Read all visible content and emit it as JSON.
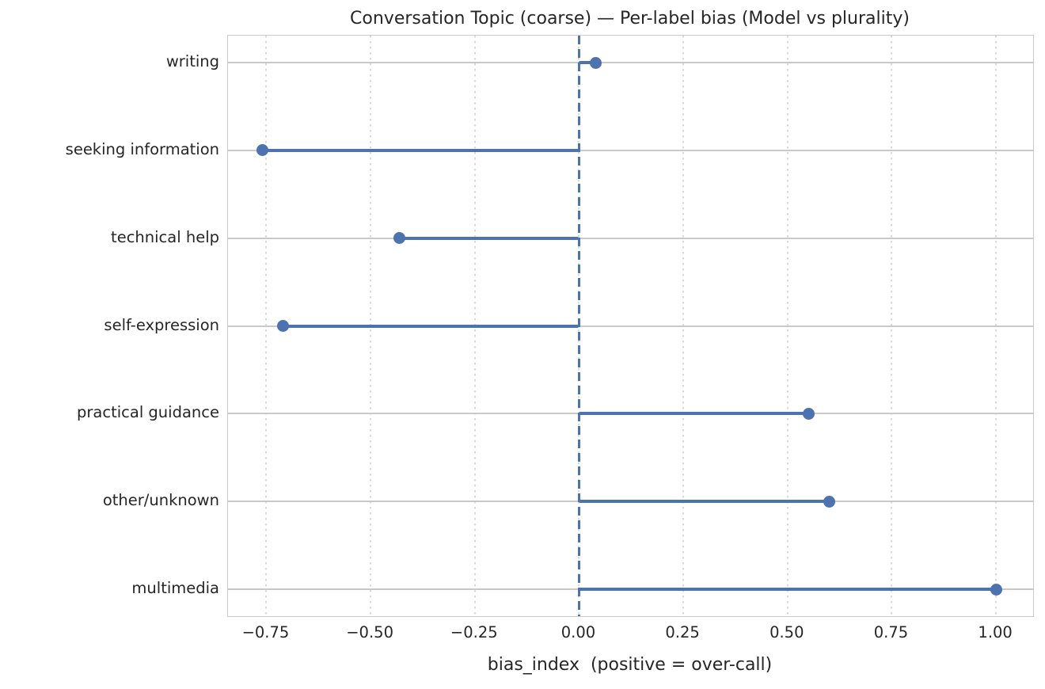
{
  "chart_data": {
    "type": "scatter",
    "subtype": "horizontal-lollipop",
    "title": "Conversation Topic (coarse) — Per-label bias (Model vs plurality)",
    "xlabel": "bias_index  (positive = over-call)",
    "categories": [
      "writing",
      "seeking information",
      "technical help",
      "self-expression",
      "practical guidance",
      "other/unknown",
      "multimedia"
    ],
    "values": [
      0.04,
      -0.76,
      -0.43,
      -0.71,
      0.55,
      0.6,
      1.0
    ],
    "xticks": [
      -0.75,
      -0.5,
      -0.25,
      0,
      0.25,
      0.5,
      0.75,
      1
    ],
    "xtick_labels": [
      "−0.75",
      "−0.50",
      "−0.25",
      "0.00",
      "0.25",
      "0.50",
      "0.75",
      "1.00"
    ],
    "xlim": [
      -0.842,
      1.089
    ],
    "zero_reference_line": 0,
    "grid": true,
    "legend": false,
    "colors": {
      "accent": "#4C72B0",
      "grid_horizontal": "#c9c9c9",
      "grid_vertical": "#d9d9d9",
      "spine": "#cccccc",
      "text": "#262626",
      "background": "#ffffff"
    }
  }
}
